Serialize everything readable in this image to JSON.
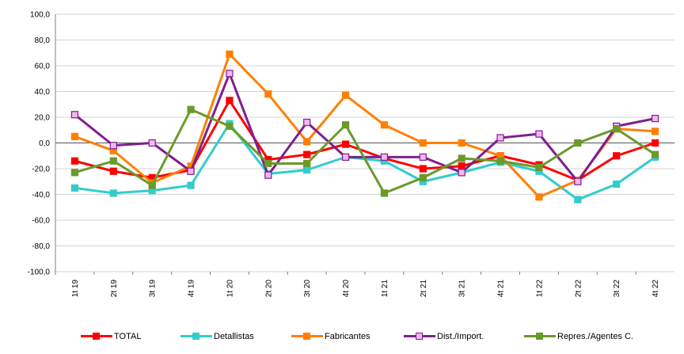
{
  "chart_data": {
    "type": "line",
    "title": "",
    "xlabel": "",
    "ylabel": "",
    "ylim": [
      -100,
      100
    ],
    "y_ticks": [
      "100,0",
      "80,0",
      "60,0",
      "40,0",
      "20,0",
      "0,0",
      "-20,0",
      "-40,0",
      "-60,0",
      "-80,0",
      "-100,0"
    ],
    "categories": [
      "1t 19",
      "2t 19",
      "3t 19",
      "4t 19",
      "1t 20",
      "2t 20",
      "3t 20",
      "4t 20",
      "1t 21",
      "2t 21",
      "3t 21",
      "4t 21",
      "1t 22",
      "2t 22",
      "3t 22",
      "4t 22"
    ],
    "grid": true,
    "legend_position": "bottom",
    "series": [
      {
        "name": "TOTAL",
        "color": "#ff0000",
        "marker_fill": "#ff0000",
        "values": [
          -14,
          -22,
          -27,
          -21,
          33,
          -13,
          -9,
          -1,
          -12,
          -20,
          -18,
          -10,
          -17,
          -29,
          -10,
          0
        ]
      },
      {
        "name": "Detallistas",
        "color": "#33cccc",
        "marker_fill": "#33cccc",
        "values": [
          -35,
          -39,
          -37,
          -33,
          15,
          -24,
          -21,
          -11,
          -14,
          -30,
          -23,
          -15,
          -22,
          -44,
          -32,
          -11
        ]
      },
      {
        "name": "Fabricantes",
        "color": "#ff8000",
        "marker_fill": "#ff8000",
        "values": [
          5,
          -6,
          -31,
          -18,
          69,
          38,
          1,
          37,
          14,
          0,
          0,
          -10,
          -42,
          -29,
          11,
          9
        ]
      },
      {
        "name": "Dist./Import.",
        "color": "#7f1f8f",
        "marker_fill": "#f0b8f0",
        "values": [
          22,
          -2,
          0,
          -22,
          54,
          -25,
          16,
          -11,
          -11,
          -11,
          -23,
          4,
          7,
          -30,
          13,
          19
        ]
      },
      {
        "name": "Repres./Agentes C.",
        "color": "#6a9a2a",
        "marker_fill": "#6a9a2a",
        "values": [
          -23,
          -14,
          -33,
          26,
          13,
          -16,
          -16,
          14,
          -39,
          -27,
          -12,
          -14,
          -19,
          0,
          11,
          -9
        ]
      }
    ]
  }
}
